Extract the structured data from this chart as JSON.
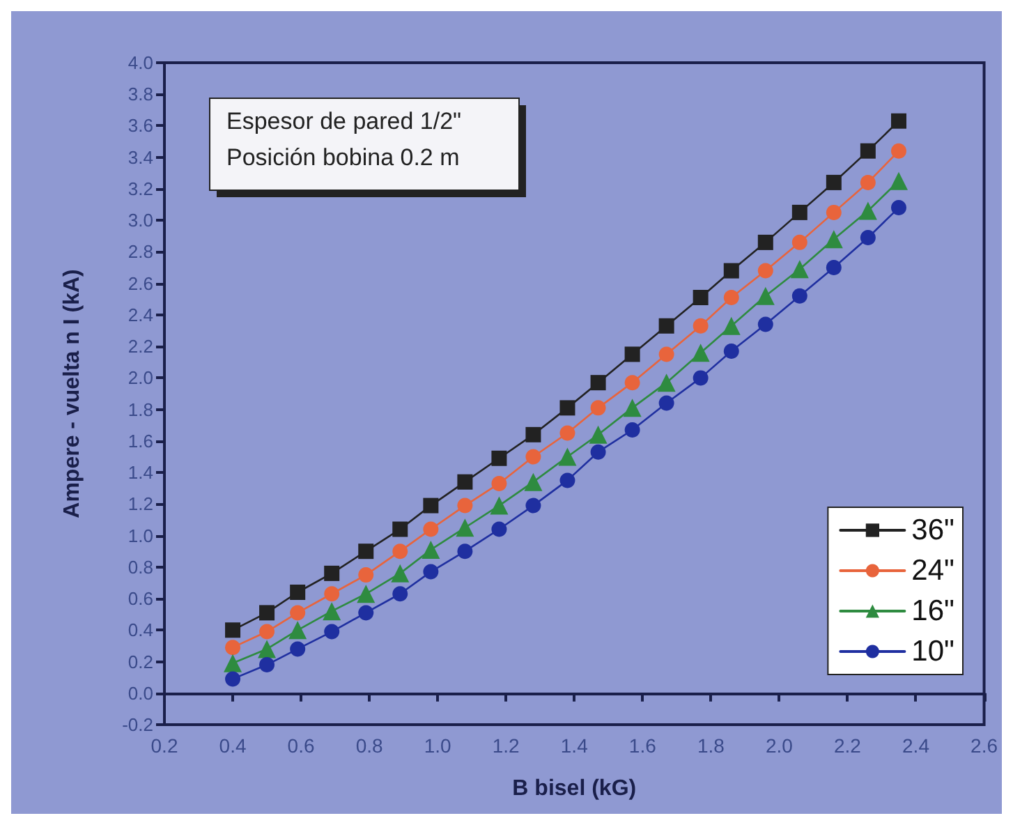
{
  "chart_data": {
    "type": "line",
    "xlabel": "B bisel (kG)",
    "ylabel": "Ampere - vuelta n I (kA)",
    "annotations": [
      "Espesor de pared 1/2\"",
      "Posición bobina 0.2 m"
    ],
    "x": [
      0.4,
      0.5,
      0.59,
      0.69,
      0.79,
      0.89,
      0.98,
      1.08,
      1.18,
      1.28,
      1.38,
      1.47,
      1.57,
      1.67,
      1.77,
      1.86,
      1.96,
      2.06,
      2.16,
      2.26,
      2.35
    ],
    "series": [
      {
        "name": "36\"",
        "color": "#222222",
        "marker": "square",
        "values": [
          0.4,
          0.51,
          0.64,
          0.76,
          0.9,
          1.04,
          1.19,
          1.34,
          1.49,
          1.64,
          1.81,
          1.97,
          2.15,
          2.33,
          2.51,
          2.68,
          2.86,
          3.05,
          3.24,
          3.44,
          3.63
        ]
      },
      {
        "name": "24\"",
        "color": "#e8643c",
        "marker": "circle",
        "values": [
          0.29,
          0.39,
          0.51,
          0.63,
          0.75,
          0.9,
          1.04,
          1.19,
          1.33,
          1.5,
          1.65,
          1.81,
          1.97,
          2.15,
          2.33,
          2.51,
          2.68,
          2.86,
          3.05,
          3.24,
          3.44
        ]
      },
      {
        "name": "16\"",
        "color": "#2e8b40",
        "marker": "triangle",
        "values": [
          0.19,
          0.28,
          0.4,
          0.52,
          0.63,
          0.76,
          0.91,
          1.05,
          1.19,
          1.34,
          1.5,
          1.64,
          1.81,
          1.97,
          2.16,
          2.33,
          2.52,
          2.69,
          2.88,
          3.06,
          3.25
        ]
      },
      {
        "name": "10\"",
        "color": "#1f2fa0",
        "marker": "circle",
        "values": [
          0.09,
          0.18,
          0.28,
          0.39,
          0.51,
          0.63,
          0.77,
          0.9,
          1.04,
          1.19,
          1.35,
          1.53,
          1.67,
          1.84,
          2.0,
          2.17,
          2.34,
          2.52,
          2.7,
          2.89,
          3.08
        ]
      }
    ],
    "xlim": [
      0.2,
      2.6
    ],
    "xticks": [
      0.2,
      0.4,
      0.6,
      0.8,
      {
        "value": 1,
        "label": "1.0"
      },
      1.2,
      1.4,
      1.6,
      1.8,
      {
        "value": 2,
        "label": "2.0"
      },
      2.2,
      2.4,
      2.6
    ],
    "ylim": [
      -0.2,
      4.0
    ],
    "yticks": [
      -0.2,
      {
        "value": 0,
        "label": "0.0"
      },
      0.2,
      0.4,
      0.6,
      0.8,
      {
        "value": 1,
        "label": "1.0"
      },
      1.2,
      1.4,
      1.6,
      1.8,
      {
        "value": 2,
        "label": "2.0"
      },
      2.2,
      2.4,
      2.6,
      2.8,
      {
        "value": 3,
        "label": "3.0"
      },
      3.2,
      3.4,
      3.6,
      3.8,
      {
        "value": 4,
        "label": "4.0"
      }
    ],
    "grid": false,
    "legend": "bottom right",
    "line_style": "solid"
  }
}
